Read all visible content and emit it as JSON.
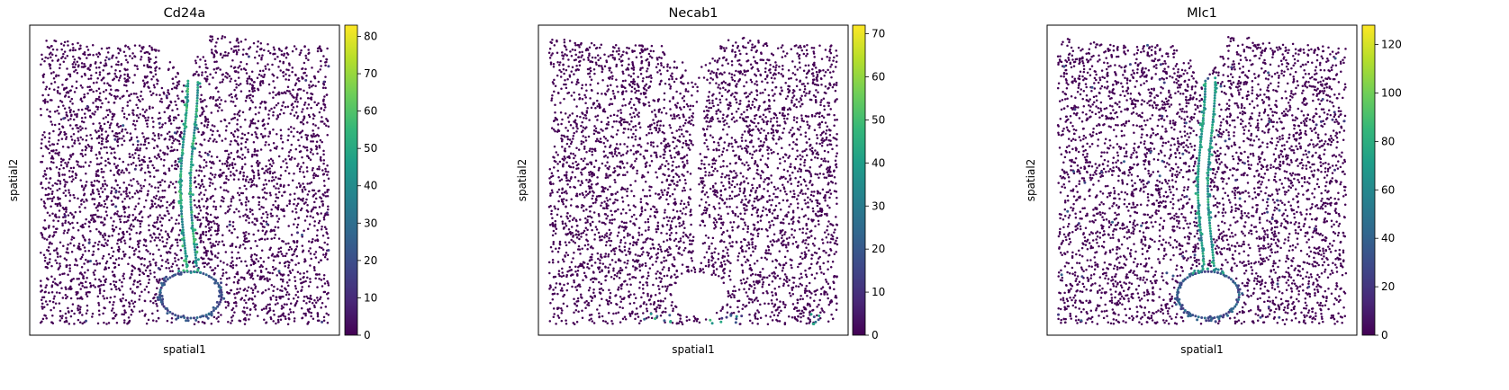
{
  "chart_data": [
    {
      "type": "scatter",
      "title": "Cd24a",
      "xlabel": "spatial1",
      "ylabel": "spatial2",
      "colorbar": {
        "colormap": "viridis",
        "range": [
          0,
          83
        ],
        "ticks": [
          0,
          10,
          20,
          30,
          40,
          50,
          60,
          70,
          80
        ]
      },
      "xticks_shown": false,
      "yticks_shown": false,
      "high_expression_region": "midline channel and lower loop"
    },
    {
      "type": "scatter",
      "title": "Necab1",
      "xlabel": "spatial1",
      "ylabel": "spatial2",
      "colorbar": {
        "colormap": "viridis",
        "range": [
          0,
          72
        ],
        "ticks": [
          0,
          10,
          20,
          30,
          40,
          50,
          60,
          70
        ]
      },
      "xticks_shown": false,
      "yticks_shown": false,
      "high_expression_region": "bottom edge clusters"
    },
    {
      "type": "scatter",
      "title": "Mlc1",
      "xlabel": "spatial1",
      "ylabel": "spatial2",
      "colorbar": {
        "colormap": "viridis",
        "range": [
          0,
          128
        ],
        "ticks": [
          0,
          20,
          40,
          60,
          80,
          100,
          120
        ]
      },
      "xticks_shown": false,
      "yticks_shown": false,
      "high_expression_region": "midline channel, lower loop and sparse scattered cells"
    }
  ],
  "colors": {
    "viridis": [
      "#440154",
      "#482878",
      "#3e4989",
      "#31688e",
      "#26828e",
      "#1f9e89",
      "#35b779",
      "#6ece58",
      "#b5de2b",
      "#fde725"
    ],
    "background": "#ffffff",
    "axis": "#000000"
  }
}
